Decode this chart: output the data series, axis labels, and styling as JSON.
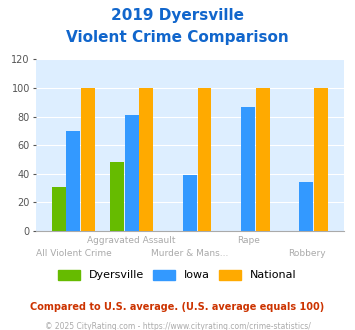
{
  "title_line1": "2019 Dyersville",
  "title_line2": "Violent Crime Comparison",
  "categories": [
    "All Violent Crime",
    "Aggravated Assault",
    "Murder & Mans...",
    "Rape",
    "Robbery"
  ],
  "x_top_labels": [
    "",
    "Aggravated Assault",
    "",
    "Rape",
    ""
  ],
  "x_bot_labels": [
    "All Violent Crime",
    "",
    "Murder & Mans...",
    "",
    "Robbery"
  ],
  "dyersville": [
    31,
    48,
    0,
    0,
    0
  ],
  "iowa": [
    70,
    81,
    39,
    87,
    34
  ],
  "national": [
    100,
    100,
    100,
    100,
    100
  ],
  "dyersville_color": "#66bb00",
  "iowa_color": "#3399ff",
  "national_color": "#ffaa00",
  "ylim": [
    0,
    120
  ],
  "yticks": [
    0,
    20,
    40,
    60,
    80,
    100,
    120
  ],
  "bg_color": "#ddeeff",
  "title_color": "#1166cc",
  "label_color": "#aaaaaa",
  "footnote1": "Compared to U.S. average. (U.S. average equals 100)",
  "footnote2": "© 2025 CityRating.com - https://www.cityrating.com/crime-statistics/",
  "footnote1_color": "#cc3300",
  "footnote2_color": "#aaaaaa",
  "legend_labels": [
    "Dyersville",
    "Iowa",
    "National"
  ]
}
